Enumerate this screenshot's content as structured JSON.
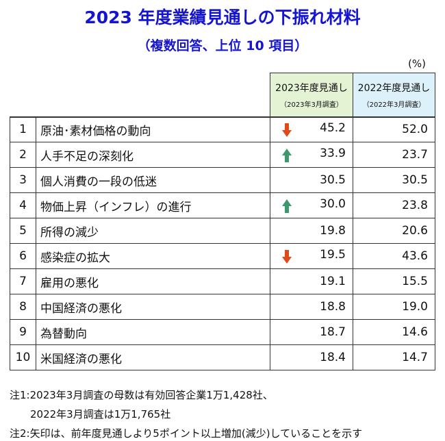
{
  "title": "2023 年度業績見通しの下振れ材料",
  "subtitle": "（複数回答、上位 10 項目）",
  "unit": "(%)",
  "table": {
    "headers": [
      {
        "title": "2023年度見通し",
        "sub": "（2023年3月調査）"
      },
      {
        "title": "2022年度見通し",
        "sub": "（2022年3月調査）"
      }
    ],
    "rows": [
      {
        "rank": "1",
        "item": "原油･素材価格の動向",
        "arrow": "down",
        "v2023": "45.2",
        "v2022": "52.0"
      },
      {
        "rank": "2",
        "item": "人手不足の深刻化",
        "arrow": "up",
        "v2023": "33.9",
        "v2022": "23.7"
      },
      {
        "rank": "3",
        "item": "個人消費の一段の低迷",
        "arrow": null,
        "v2023": "30.5",
        "v2022": "30.5"
      },
      {
        "rank": "4",
        "item": "物価上昇（インフレ）の進行",
        "arrow": "up",
        "v2023": "30.0",
        "v2022": "23.8"
      },
      {
        "rank": "5",
        "item": "所得の減少",
        "arrow": null,
        "v2023": "19.8",
        "v2022": "20.6"
      },
      {
        "rank": "6",
        "item": "感染症の拡大",
        "arrow": "down",
        "v2023": "19.5",
        "v2022": "43.6"
      },
      {
        "rank": "7",
        "item": "雇用の悪化",
        "arrow": null,
        "v2023": "19.1",
        "v2022": "15.5"
      },
      {
        "rank": "8",
        "item": "中国経済の悪化",
        "arrow": null,
        "v2023": "18.8",
        "v2022": "19.0"
      },
      {
        "rank": "9",
        "item": "為替動向",
        "arrow": null,
        "v2023": "18.7",
        "v2022": "14.6"
      },
      {
        "rank": "10",
        "item": "米国経済の悪化",
        "arrow": null,
        "v2023": "18.4",
        "v2022": "14.7"
      }
    ]
  },
  "notes": [
    {
      "label": "注1:",
      "lines": [
        "2023年3月調査の母数は有効回答企業1万1,428社、",
        "2022年3月調査は1万1,765社"
      ]
    },
    {
      "label": "注2:",
      "lines": [
        "矢印は、前年度見通しより5ポイント以上増加(減少)していることを示す"
      ]
    }
  ]
}
